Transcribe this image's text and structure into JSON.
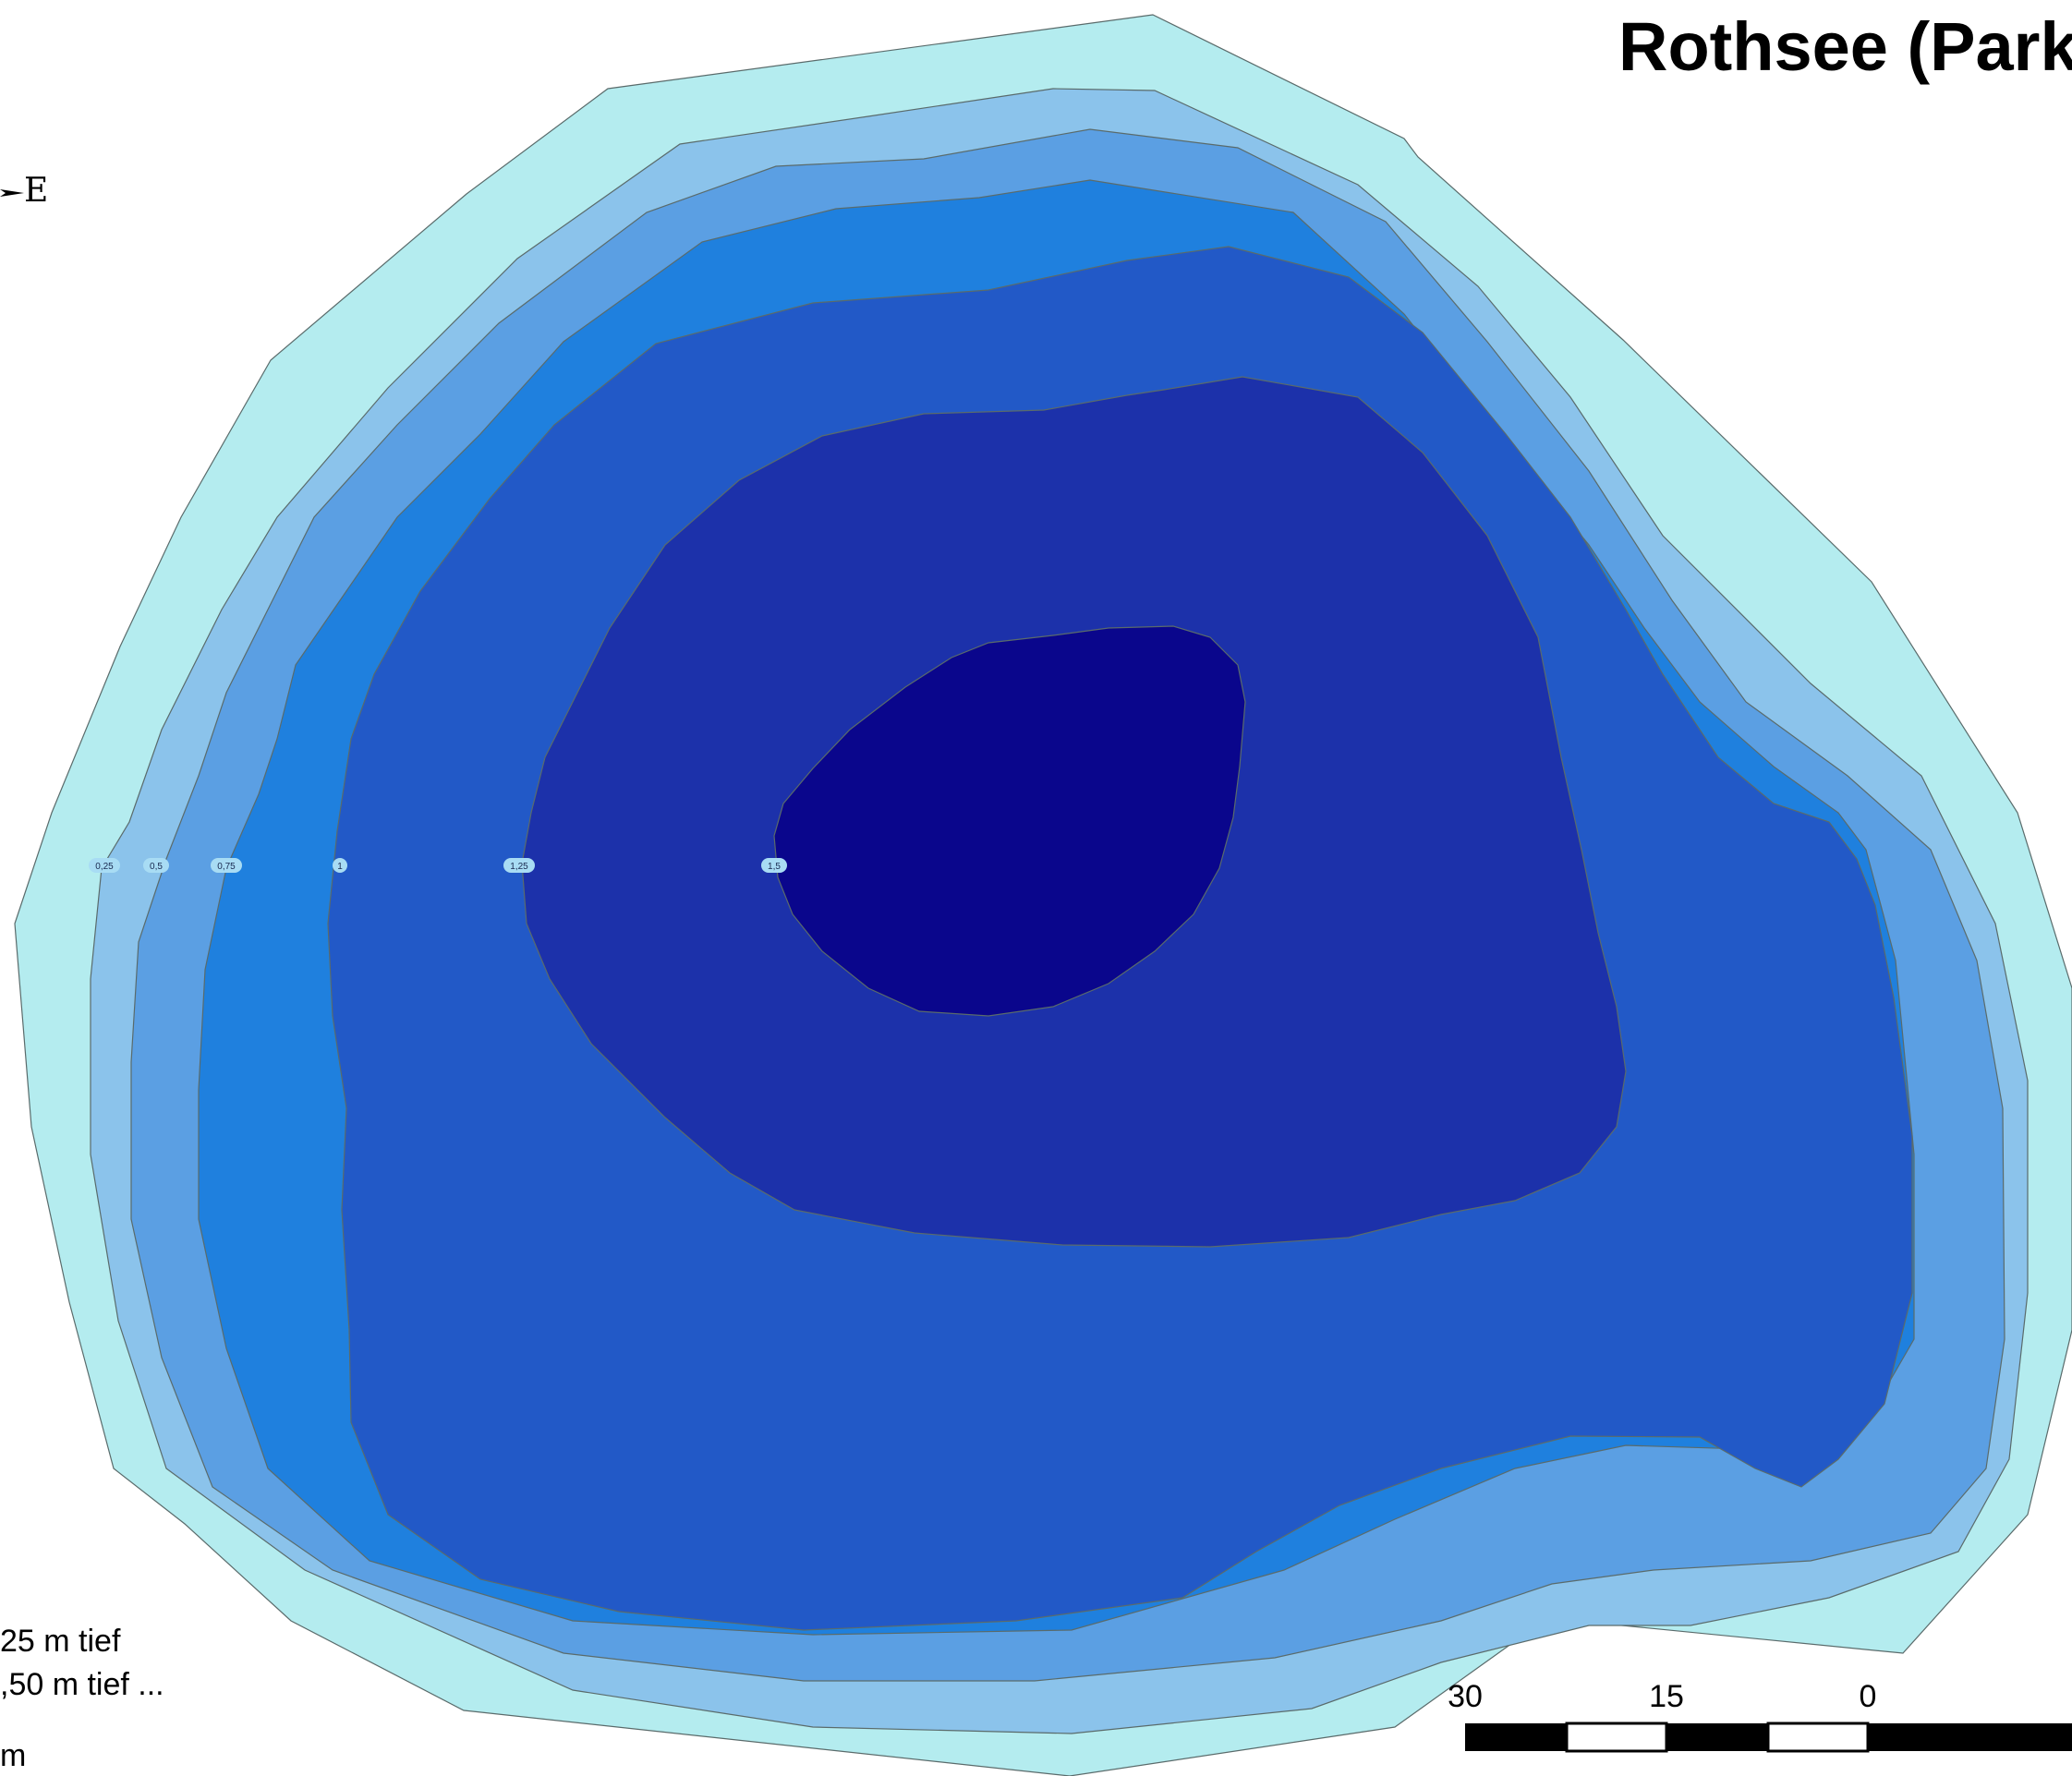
{
  "title": "Rothsee (Park",
  "north_arrow": {
    "icon": "north-arrow-icon",
    "label": "E"
  },
  "contour_labels": [
    "0,25",
    "0,5",
    "0,75",
    "1",
    "1,25",
    "1,5"
  ],
  "depth_colors": [
    "#b4ecef",
    "#8bc3eb",
    "#5b9fe3",
    "#1f80de",
    "#2259c7",
    "#1c31aa",
    "#0a068c"
  ],
  "legend": {
    "lines": [
      "25 m tief",
      ",50 m tief ...",
      "m"
    ]
  },
  "scale_bar": {
    "labels": [
      "30",
      "15",
      "0"
    ]
  }
}
